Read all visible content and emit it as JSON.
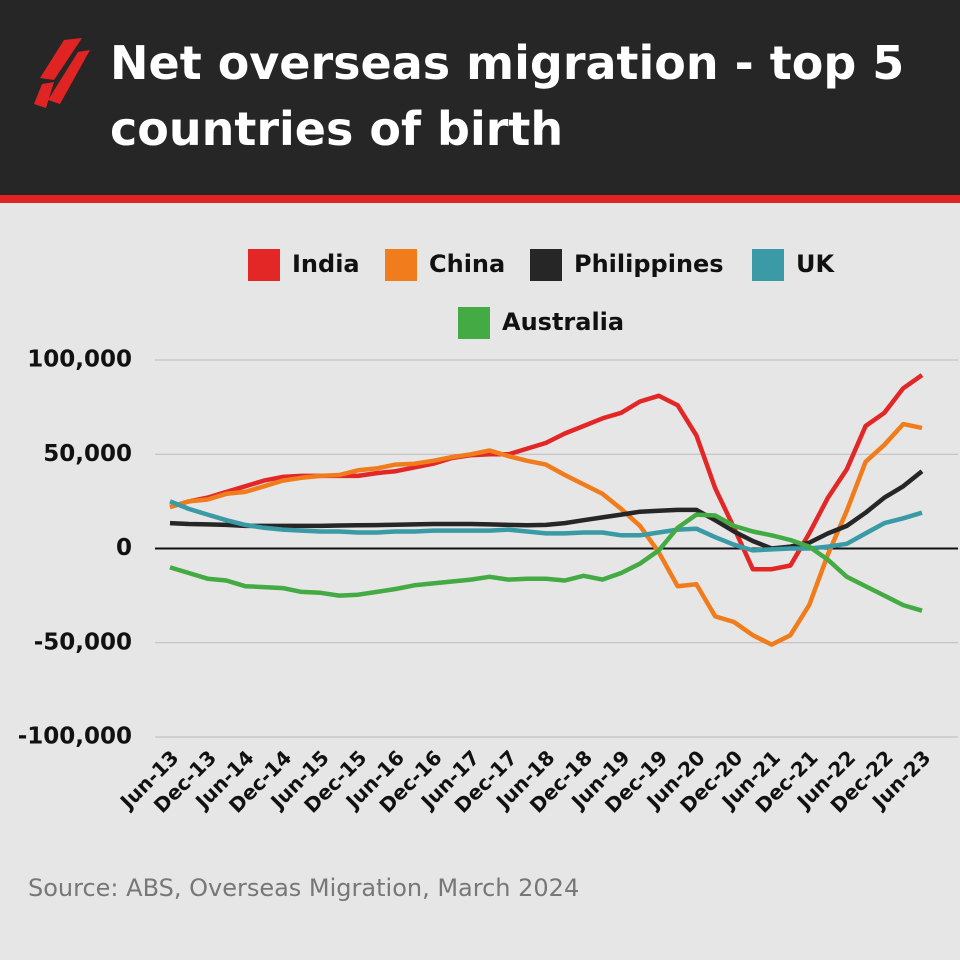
{
  "chart_data": {
    "type": "line",
    "title": "Net overseas migration - top 5 countries of birth",
    "source": "Source: ABS, Overseas Migration, March 2024",
    "categories": [
      "Jun-13",
      null,
      "Dec-13",
      null,
      "Jun-14",
      null,
      "Dec-14",
      null,
      "Jun-15",
      null,
      "Dec-15",
      null,
      "Jun-16",
      null,
      "Dec-16",
      null,
      "Jun-17",
      null,
      "Dec-17",
      null,
      "Jun-18",
      null,
      "Dec-18",
      null,
      "Jun-19",
      null,
      "Dec-19",
      null,
      "Jun-20",
      null,
      "Dec-20",
      null,
      "Jun-21",
      null,
      "Dec-21",
      null,
      "Jun-22",
      null,
      "Dec-22",
      null,
      "Jun-23"
    ],
    "series": [
      {
        "name": "India",
        "color": "#e32626",
        "values": [
          22000,
          25000,
          27000,
          30000,
          33000,
          36000,
          38000,
          38500,
          38500,
          38500,
          38500,
          40000,
          41000,
          43000,
          45000,
          48000,
          49500,
          50000,
          50000,
          53000,
          56000,
          61000,
          65000,
          69000,
          72000,
          78000,
          81000,
          76000,
          60000,
          32000,
          11000,
          -11000,
          -11000,
          -9000,
          8000,
          27000,
          42000,
          65000,
          72000,
          85000,
          92000
        ]
      },
      {
        "name": "China",
        "color": "#f07c1c",
        "values": [
          22000,
          25000,
          26000,
          29000,
          30000,
          33000,
          36000,
          37500,
          38500,
          39000,
          41500,
          42500,
          44500,
          45000,
          46500,
          48500,
          50000,
          52000,
          49000,
          46500,
          44500,
          39000,
          34000,
          29000,
          21000,
          12000,
          -2000,
          -20000,
          -19000,
          -36000,
          -39000,
          -46000,
          -51000,
          -46000,
          -30000,
          -3000,
          20000,
          46000,
          55000,
          66000,
          64000
        ]
      },
      {
        "name": "Philippines",
        "color": "#262626",
        "values": [
          13500,
          13000,
          12800,
          12500,
          12000,
          12000,
          12000,
          12000,
          12000,
          12200,
          12300,
          12400,
          12600,
          12800,
          13000,
          13000,
          13000,
          12800,
          12500,
          12300,
          12500,
          13500,
          15000,
          16500,
          18000,
          19500,
          20000,
          20500,
          20500,
          15000,
          9000,
          4000,
          0,
          1000,
          3000,
          8000,
          12000,
          19000,
          27000,
          33000,
          41000
        ]
      },
      {
        "name": "UK",
        "color": "#3a9aa6",
        "values": [
          25000,
          21000,
          18000,
          15000,
          12500,
          11000,
          10000,
          9500,
          9000,
          9000,
          8500,
          8500,
          9000,
          9000,
          9500,
          9500,
          9500,
          9500,
          10000,
          9000,
          8000,
          8000,
          8500,
          8500,
          7000,
          7000,
          8500,
          10000,
          10500,
          6000,
          2000,
          -1000,
          -500,
          0,
          0,
          1000,
          2500,
          8000,
          13500,
          16000,
          19000
        ]
      },
      {
        "name": "Australia",
        "color": "#44aa44",
        "values": [
          -10000,
          -13000,
          -16000,
          -17000,
          -20000,
          -20500,
          -21000,
          -23000,
          -23500,
          -25000,
          -24500,
          -23000,
          -21500,
          -19500,
          -18500,
          -17500,
          -16500,
          -15000,
          -16500,
          -16000,
          -16000,
          -17000,
          -14500,
          -16500,
          -13000,
          -8000,
          -1000,
          11000,
          18000,
          17500,
          12000,
          9000,
          7000,
          4500,
          1000,
          -6000,
          -15000,
          -20000,
          -25000,
          -30000,
          -33000
        ]
      }
    ],
    "ylim": [
      -100000,
      100000
    ],
    "yticks": [
      {
        "value": -100000,
        "label": "-100,000"
      },
      {
        "value": -50000,
        "label": "-50,000"
      },
      0,
      {
        "value": 50000,
        "label": "50,000"
      },
      {
        "value": 100000,
        "label": "100,000"
      }
    ],
    "grid": true
  }
}
